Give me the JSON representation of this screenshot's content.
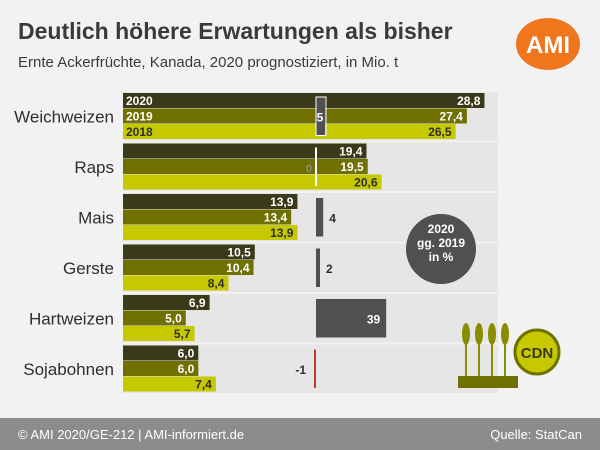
{
  "header": {
    "title": "Deutlich höhere Erwartungen als bisher",
    "subtitle": "Ernte Ackerfrüchte, Kanada, 2020 prognostiziert, in Mio. t",
    "logo_text": "AMI"
  },
  "footer": {
    "copyright": "© AMI 2020/GE-212 | AMI-informiert.de",
    "source": "Quelle: StatCan"
  },
  "badge": {
    "line1": "2020",
    "line2": "gg. 2019",
    "line3": "in %"
  },
  "decoration": {
    "cdn_label": "CDN"
  },
  "colors": {
    "y2020": "#3a3a1a",
    "y2019": "#6f7000",
    "y2018": "#c6c800",
    "change_bar": "#505050",
    "negative_line": "#c0392b",
    "badge": "#505050",
    "logo": "#f0761e",
    "footer": "#8c8c8c"
  },
  "chart_data": {
    "type": "bar",
    "orientation": "horizontal",
    "title": "Deutlich höhere Erwartungen als bisher",
    "subtitle": "Ernte Ackerfrüchte, Kanada, 2020 prognostiziert, in Mio. t",
    "categories": [
      "Weichweizen",
      "Raps",
      "Mais",
      "Gerste",
      "Hartweizen",
      "Sojabohnen"
    ],
    "series": [
      {
        "name": "2020",
        "values": [
          28.8,
          19.4,
          13.9,
          10.5,
          6.9,
          6.0
        ],
        "labels": [
          "28,8",
          "19,4",
          "13,9",
          "10,5",
          "6,9",
          "6,0"
        ]
      },
      {
        "name": "2019",
        "values": [
          27.4,
          19.5,
          13.4,
          10.4,
          5.0,
          6.0
        ],
        "labels": [
          "27,4",
          "19,5",
          "13,4",
          "10,4",
          "5,0",
          "6,0"
        ]
      },
      {
        "name": "2018",
        "values": [
          26.5,
          20.6,
          13.9,
          8.4,
          5.7,
          7.4
        ],
        "labels": [
          "26,5",
          "20,6",
          "13,9",
          "8,4",
          "5,7",
          "7,4"
        ]
      }
    ],
    "change_pct": {
      "values": [
        5,
        0,
        4,
        2,
        39,
        -1
      ],
      "labels": [
        "5",
        "0",
        "4",
        "2",
        "39",
        "-1"
      ]
    },
    "legend_placement": "inline-first-category",
    "grid": false
  }
}
